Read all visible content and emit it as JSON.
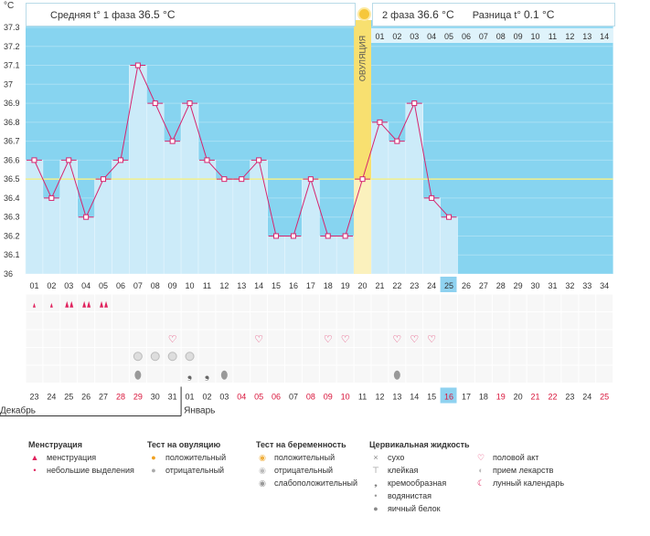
{
  "chart_data": {
    "type": "line",
    "unit_label": "°C",
    "y_ticks": [
      "37.3",
      "37.2",
      "37.1",
      "37",
      "36.9",
      "36.8",
      "36.7",
      "36.6",
      "36.5",
      "36.4",
      "36.3",
      "36.2",
      "36.1",
      "36"
    ],
    "ylim": [
      36.0,
      37.3
    ],
    "coverline": 36.5,
    "cycle_days": [
      "01",
      "02",
      "03",
      "04",
      "05",
      "06",
      "07",
      "08",
      "09",
      "10",
      "11",
      "12",
      "13",
      "14",
      "15",
      "16",
      "17",
      "18",
      "19",
      "20",
      "21",
      "22",
      "23",
      "24",
      "25",
      "26",
      "27",
      "28",
      "29",
      "30",
      "31",
      "32",
      "33",
      "34"
    ],
    "temperatures": [
      36.6,
      36.4,
      36.6,
      36.3,
      36.5,
      36.6,
      37.1,
      36.9,
      36.7,
      36.9,
      36.6,
      36.5,
      36.5,
      36.6,
      36.2,
      36.2,
      36.5,
      36.2,
      36.2,
      36.5,
      36.8,
      36.7,
      36.9,
      36.4,
      36.3
    ],
    "ovulation_day": "20",
    "ovulation_label": "ОВУЛЯЦИЯ",
    "today_day": "25",
    "phase2_days": [
      "01",
      "02",
      "03",
      "04",
      "05",
      "06",
      "07",
      "08",
      "09",
      "10",
      "11",
      "12",
      "13",
      "14"
    ],
    "calendar_dates": [
      "23",
      "24",
      "25",
      "26",
      "27",
      "28",
      "29",
      "30",
      "31",
      "01",
      "02",
      "03",
      "04",
      "05",
      "06",
      "07",
      "08",
      "09",
      "10",
      "11",
      "12",
      "13",
      "14",
      "15",
      "16",
      "17",
      "18",
      "19",
      "20",
      "21",
      "22",
      "23",
      "24",
      "25"
    ],
    "calendar_red_dates": [
      5,
      6,
      12,
      13,
      14,
      16,
      17,
      18,
      24,
      27,
      29,
      30,
      33
    ],
    "today_date_index": 24,
    "month_labels": [
      "Декабрь",
      "Январь"
    ],
    "symptoms": {
      "menstruation": [
        1,
        1,
        2,
        2,
        2
      ],
      "intercourse": [
        9,
        14,
        18,
        19,
        22,
        23,
        24
      ],
      "ovulation_test_neg": [
        7,
        8,
        9,
        10
      ],
      "cervical_creamy": [
        10,
        11
      ],
      "cervical_watery": [
        7,
        12,
        22
      ]
    }
  },
  "header": {
    "phase1_label": "Средняя t° 1 фаза",
    "phase1_value": "36.5 °C",
    "phase2_label": "2 фаза",
    "phase2_value": "36.6 °C",
    "diff_label": "Разница t°",
    "diff_value": "0.1 °C"
  },
  "legend": {
    "menstruation": {
      "title": "Менструация",
      "items": [
        "менструация",
        "небольшие выделения"
      ]
    },
    "ovulation_test": {
      "title": "Тест на овуляцию",
      "items": [
        "положительный",
        "отрицательный"
      ]
    },
    "pregnancy_test": {
      "title": "Тест на беременность",
      "items": [
        "положительный",
        "отрицательный",
        "слабоположительный"
      ]
    },
    "cervical": {
      "title": "Цервикальная жидкость",
      "items": [
        "сухо",
        "клейкая",
        "кремообразная",
        "водянистая",
        "яичный белок"
      ]
    },
    "other": {
      "items": [
        "половой акт",
        "прием лекарств",
        "лунный календарь"
      ]
    }
  },
  "colors": {
    "sky": "#87d4f0",
    "bar": "#ccebf9",
    "line": "#d6246e",
    "coverline": "#f2ef8a",
    "ovulation": "#f8e070",
    "today": "#8fd2f0",
    "red_date": "#d8143a"
  }
}
